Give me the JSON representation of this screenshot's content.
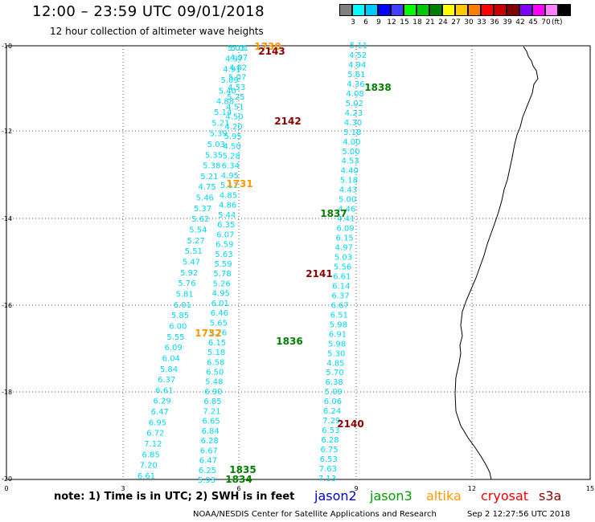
{
  "header": {
    "title": "12:00 – 23:59 UTC 09/01/2018",
    "subtitle": "12 hour collection of altimeter wave heights"
  },
  "color_scale": {
    "colors": [
      "#808080",
      "#00ffff",
      "#00c8ff",
      "#0000ff",
      "#4040ff",
      "#00ff00",
      "#00c800",
      "#008000",
      "#ffff00",
      "#ffc800",
      "#ff8000",
      "#ff0000",
      "#c80000",
      "#800000",
      "#8000ff",
      "#ff00ff",
      "#ff80ff",
      "#000000"
    ],
    "ticks": [
      "3",
      "6",
      "9",
      "12",
      "15",
      "18",
      "21",
      "24",
      "27",
      "30",
      "33",
      "36",
      "39",
      "42",
      "45",
      "70"
    ],
    "unit": "(ft)"
  },
  "axes": {
    "y_labels": [
      "-10",
      "-12",
      "-14",
      "-16",
      "-18",
      "-20"
    ],
    "x_labels": [
      "0",
      "3",
      "6",
      "9",
      "12",
      "15"
    ]
  },
  "map": {
    "wave_color": "#00d8f0",
    "pass_labels": [
      {
        "text": "1730",
        "color": "#ff9900"
      },
      {
        "text": "2143",
        "color": "#8b0000"
      },
      {
        "text": "1838",
        "color": "#008000"
      },
      {
        "text": "2142",
        "color": "#8b0000"
      },
      {
        "text": "1731",
        "color": "#ff9900"
      },
      {
        "text": "1837",
        "color": "#008000"
      },
      {
        "text": "2141",
        "color": "#8b0000"
      },
      {
        "text": "1732",
        "color": "#ff9900"
      },
      {
        "text": "1836",
        "color": "#008000"
      },
      {
        "text": "2140",
        "color": "#8b0000"
      },
      {
        "text": "1835",
        "color": "#008000"
      },
      {
        "text": "1834",
        "color": "#008000"
      }
    ],
    "track_left": [
      "5.03",
      "4.97",
      "4.91",
      "5.09",
      "5.40",
      "4.88",
      "5.14",
      "5.21",
      "5.39",
      "5.03",
      "5.35",
      "5.38",
      "5.21",
      "4.75",
      "5.46",
      "5.37",
      "5.62",
      "5.54",
      "5.27",
      "5.51",
      "5.47",
      "5.92",
      "5.76",
      "5.81",
      "6.01",
      "5.85",
      "6.00",
      "5.55",
      "6.09",
      "6.04",
      "5.84",
      "6.37",
      "6.61",
      "6.29",
      "6.47",
      "6.95",
      "6.72",
      "7.12",
      "6.85",
      "7.20",
      "6.61"
    ],
    "track_mid": [
      "5.01",
      "4.97",
      "4.82",
      "5.07",
      "4.53",
      "5.25",
      "4.51",
      "4.50",
      "4.20",
      "5.95",
      "4.50",
      "5.28",
      "6.34",
      "4.95",
      "5.11",
      "4.85",
      "4.86",
      "5.44",
      "6.35",
      "6.07",
      "6.59",
      "5.63",
      "5.59",
      "5.78",
      "5.26",
      "4.95",
      "6.01",
      "6.46",
      "5.65",
      "5.76",
      "6.15",
      "5.18",
      "6.58",
      "6.50",
      "5.48",
      "6.90",
      "6.85",
      "7.21",
      "6.65",
      "6.84",
      "6.28",
      "6.67",
      "6.47",
      "6.25",
      "5.93"
    ],
    "track_right": [
      "5.11",
      "4.52",
      "4.94",
      "5.61",
      "4.36",
      "4.08",
      "5.02",
      "4.23",
      "4.30",
      "5.18",
      "4.00",
      "5.00",
      "4.53",
      "4.40",
      "5.18",
      "4.43",
      "5.00",
      "4.46",
      "4.41",
      "6.09",
      "6.15",
      "4.97",
      "5.03",
      "5.56",
      "6.61",
      "6.14",
      "6.37",
      "6.67",
      "6.51",
      "5.98",
      "6.91",
      "5.98",
      "5.30",
      "4.85",
      "5.70",
      "6.38",
      "5.09",
      "6.06",
      "6.24",
      "7.29",
      "6.53",
      "6.28",
      "6.75",
      "6.53",
      "7.63",
      "7.13"
    ]
  },
  "note": "note: 1) Time is in UTC; 2) SWH is in feet",
  "satellites": [
    {
      "name": "jason2",
      "color": "#0000cc"
    },
    {
      "name": "jason3",
      "color": "#00a000"
    },
    {
      "name": "altika",
      "color": "#ff9900"
    },
    {
      "name": "cryosat",
      "color": "#ee0000"
    },
    {
      "name": "s3a",
      "color": "#8b0000"
    }
  ],
  "footer": {
    "credit": "NOAA/NESDIS Center for Satellite Applications and Research",
    "timestamp": "Sep  2 12:27:56 UTC 2018"
  }
}
